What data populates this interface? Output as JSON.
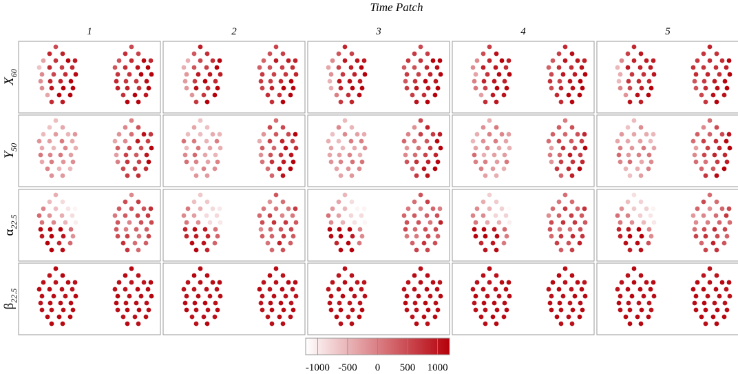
{
  "chart_data": {
    "type": "heatmap",
    "title": "Time Patch",
    "columns": [
      "1",
      "2",
      "3",
      "4",
      "5"
    ],
    "rows": [
      {
        "base": "X",
        "sub": "60"
      },
      {
        "base": "Y",
        "sub": "50"
      },
      {
        "base": "α",
        "sub": "22.5"
      },
      {
        "base": "β",
        "sub": "22.5"
      }
    ],
    "colorbar": {
      "ticks": [
        "-1000",
        "-500",
        "0",
        "500",
        "1000"
      ],
      "tick_values": [
        -1000,
        -500,
        0,
        500,
        1000
      ],
      "range": [
        -1200,
        1200
      ],
      "colors": {
        "low": "#ffffff",
        "high": "#b5000a"
      }
    },
    "panel_patterns": {
      "X": "mostly high values, left cluster lighter on left edge",
      "Y": "left cluster moderate, right cluster high on right side",
      "alpha": "left cluster high bottom-left, very light upper-middle; right cluster moderate",
      "beta": "uniformly high"
    }
  }
}
